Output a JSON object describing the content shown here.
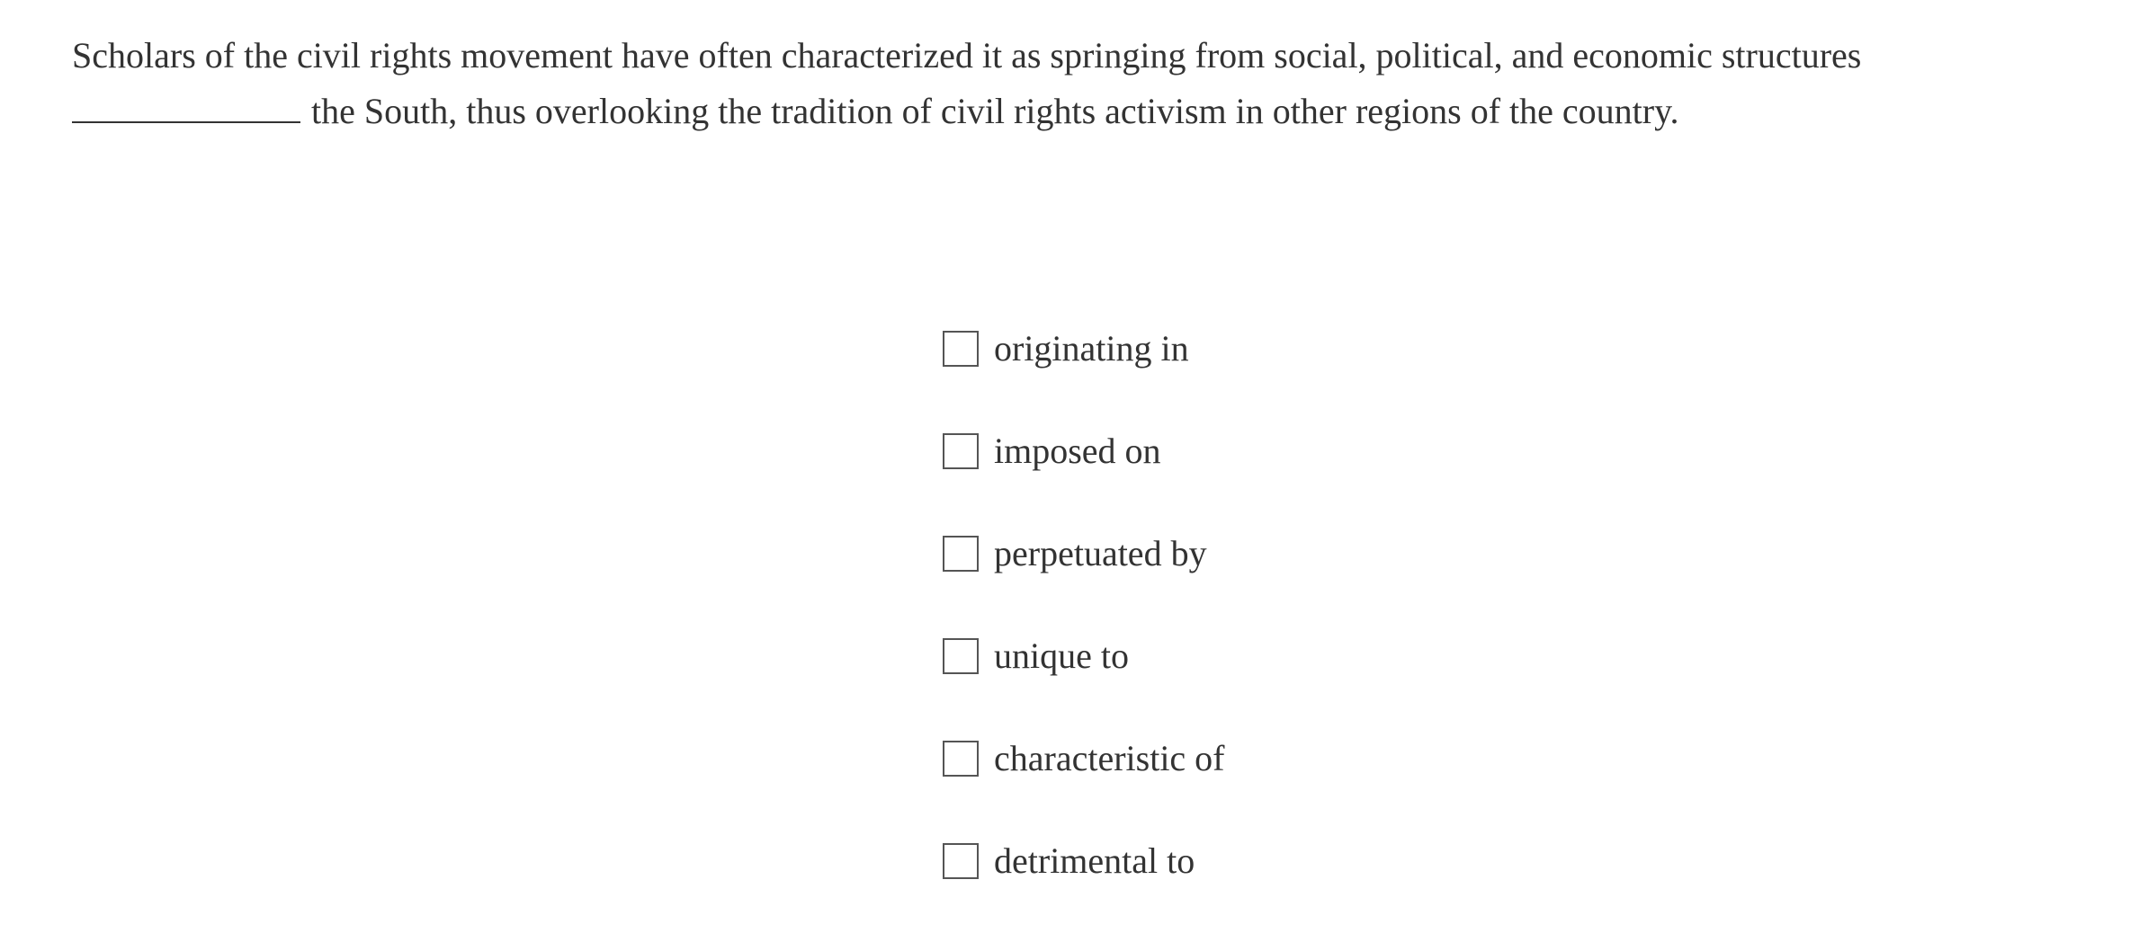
{
  "question": {
    "line1": "Scholars of the civil rights movement have often characterized it as springing from social, political, and economic structures",
    "line2": "the South, thus overlooking the tradition of civil rights activism in other regions of the country."
  },
  "options": [
    {
      "label": "originating in",
      "checked": false
    },
    {
      "label": "imposed on",
      "checked": false
    },
    {
      "label": "perpetuated by",
      "checked": false
    },
    {
      "label": "unique to",
      "checked": false
    },
    {
      "label": "characteristic of",
      "checked": false
    },
    {
      "label": "detrimental to",
      "checked": false
    }
  ]
}
